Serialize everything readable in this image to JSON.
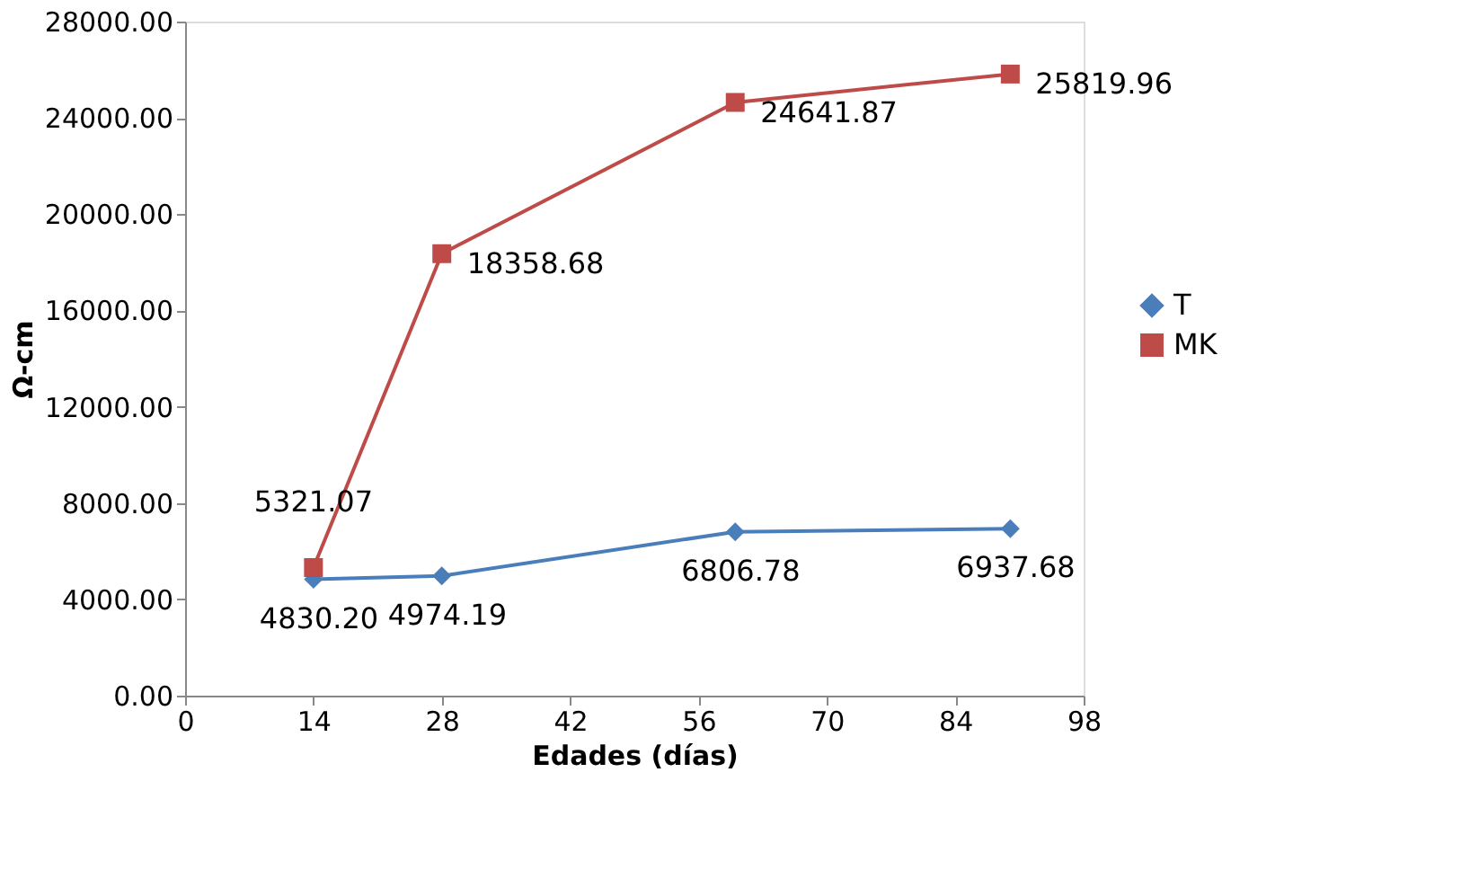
{
  "chart_data": {
    "type": "line",
    "xlabel": "Edades (días)",
    "ylabel": "Ω-cm",
    "x": [
      14,
      28,
      60,
      90
    ],
    "series": [
      {
        "name": "T",
        "color": "#4a7ebb",
        "marker": "diamond",
        "values": [
          4830.2,
          4974.19,
          6806.78,
          6937.68
        ],
        "value_labels": [
          "4830.20",
          "4974.19",
          "6806.78",
          "6937.68"
        ]
      },
      {
        "name": "MK",
        "color": "#be4b48",
        "marker": "square",
        "values": [
          5321.07,
          18358.68,
          24641.87,
          25819.96
        ],
        "value_labels": [
          "5321.07",
          "18358.68",
          "24641.87",
          "25819.96"
        ]
      }
    ],
    "xlim": [
      0,
      98
    ],
    "xticks": [
      0,
      14,
      28,
      42,
      56,
      70,
      84,
      98
    ],
    "ylim": [
      0,
      28000
    ],
    "yticks": [
      {
        "value": 0,
        "label": "0.00"
      },
      {
        "value": 4000,
        "label": "4000.00"
      },
      {
        "value": 8000,
        "label": "8000.00"
      },
      {
        "value": 12000,
        "label": "12000.00"
      },
      {
        "value": 16000,
        "label": "16000.00"
      },
      {
        "value": 20000,
        "label": "20000.00"
      },
      {
        "value": 24000,
        "label": "24000.00"
      },
      {
        "value": 28000,
        "label": "28000.00"
      }
    ],
    "grid": false,
    "legend": "right",
    "line_style": "solid"
  }
}
